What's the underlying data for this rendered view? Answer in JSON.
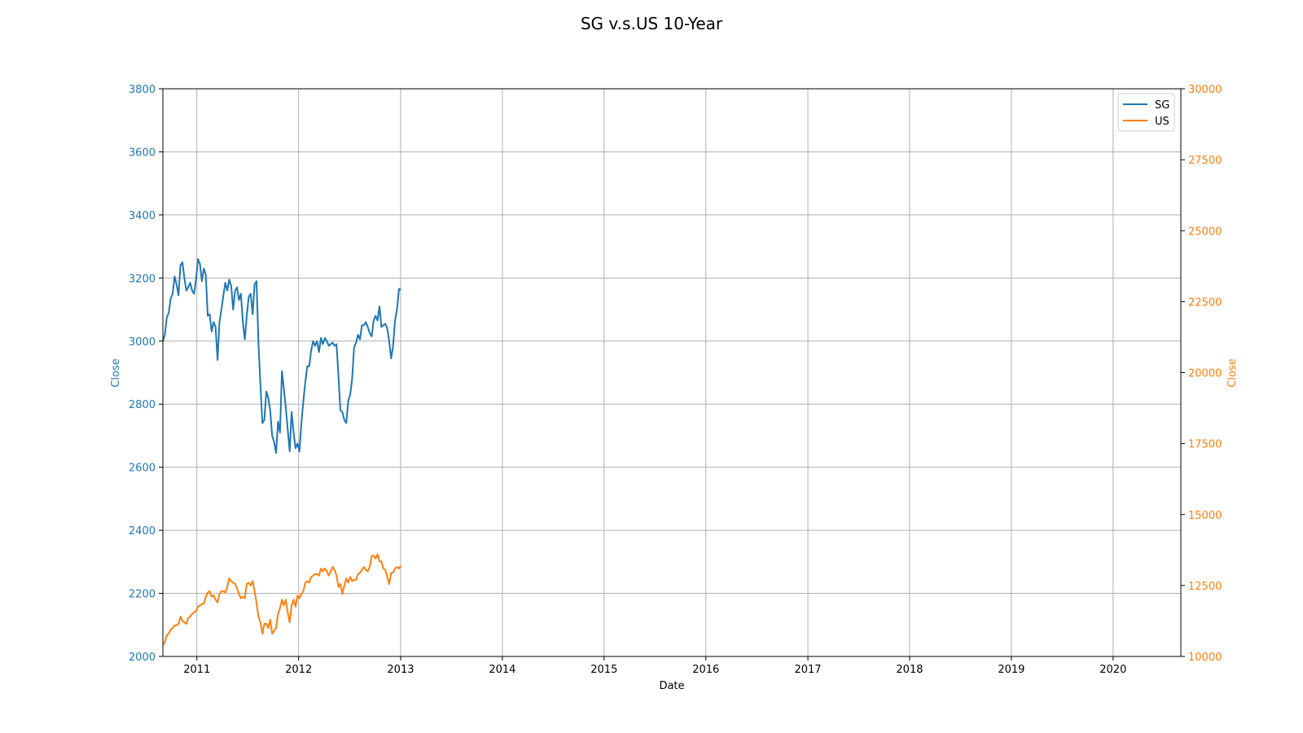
{
  "chart_data": {
    "type": "line",
    "title": "SG v.s.US 10-Year",
    "xlabel": "Date",
    "ylabel_left": "Close",
    "ylabel_right": "Close",
    "x_ticks": [
      "2011",
      "2012",
      "2013",
      "2014",
      "2015",
      "2016",
      "2017",
      "2018",
      "2019",
      "2020"
    ],
    "xlim": [
      "2010-09-01",
      "2020-08-31"
    ],
    "ylim_left": [
      2000,
      3800
    ],
    "ylim_right": [
      10000,
      30000
    ],
    "y_ticks_left": [
      2000,
      2200,
      2400,
      2600,
      2800,
      3000,
      3200,
      3400,
      3600,
      3800
    ],
    "y_ticks_right": [
      10000,
      12500,
      15000,
      17500,
      20000,
      22500,
      25000,
      27500,
      30000
    ],
    "grid": true,
    "legend_position": "top-right",
    "colors": {
      "SG": "#1f77b4",
      "US": "#ff7f0e"
    },
    "series": [
      {
        "name": "SG",
        "axis": "left",
        "color": "#1f77b4",
        "points": [
          [
            "2010-09-01",
            3000
          ],
          [
            "2010-09-08",
            3020
          ],
          [
            "2010-09-15",
            3075
          ],
          [
            "2010-09-22",
            3090
          ],
          [
            "2010-09-29",
            3135
          ],
          [
            "2010-10-06",
            3150
          ],
          [
            "2010-10-13",
            3205
          ],
          [
            "2010-10-20",
            3180
          ],
          [
            "2010-10-27",
            3145
          ],
          [
            "2010-11-03",
            3240
          ],
          [
            "2010-11-10",
            3250
          ],
          [
            "2010-11-17",
            3200
          ],
          [
            "2010-11-24",
            3160
          ],
          [
            "2010-12-01",
            3170
          ],
          [
            "2010-12-08",
            3185
          ],
          [
            "2010-12-15",
            3160
          ],
          [
            "2010-12-22",
            3150
          ],
          [
            "2010-12-29",
            3195
          ],
          [
            "2011-01-05",
            3260
          ],
          [
            "2011-01-12",
            3245
          ],
          [
            "2011-01-19",
            3190
          ],
          [
            "2011-01-26",
            3230
          ],
          [
            "2011-02-02",
            3210
          ],
          [
            "2011-02-09",
            3080
          ],
          [
            "2011-02-16",
            3085
          ],
          [
            "2011-02-23",
            3030
          ],
          [
            "2011-03-02",
            3060
          ],
          [
            "2011-03-09",
            3045
          ],
          [
            "2011-03-16",
            2940
          ],
          [
            "2011-03-23",
            3060
          ],
          [
            "2011-03-30",
            3100
          ],
          [
            "2011-04-06",
            3145
          ],
          [
            "2011-04-13",
            3185
          ],
          [
            "2011-04-20",
            3160
          ],
          [
            "2011-04-27",
            3195
          ],
          [
            "2011-05-04",
            3175
          ],
          [
            "2011-05-11",
            3100
          ],
          [
            "2011-05-18",
            3160
          ],
          [
            "2011-05-25",
            3170
          ],
          [
            "2011-06-01",
            3130
          ],
          [
            "2011-06-08",
            3150
          ],
          [
            "2011-06-15",
            3060
          ],
          [
            "2011-06-22",
            3005
          ],
          [
            "2011-06-29",
            3080
          ],
          [
            "2011-07-06",
            3140
          ],
          [
            "2011-07-13",
            3150
          ],
          [
            "2011-07-20",
            3085
          ],
          [
            "2011-07-27",
            3180
          ],
          [
            "2011-08-03",
            3190
          ],
          [
            "2011-08-10",
            2990
          ],
          [
            "2011-08-17",
            2860
          ],
          [
            "2011-08-24",
            2740
          ],
          [
            "2011-08-31",
            2750
          ],
          [
            "2011-09-07",
            2840
          ],
          [
            "2011-09-14",
            2820
          ],
          [
            "2011-09-21",
            2780
          ],
          [
            "2011-09-28",
            2700
          ],
          [
            "2011-10-05",
            2680
          ],
          [
            "2011-10-12",
            2645
          ],
          [
            "2011-10-19",
            2745
          ],
          [
            "2011-10-26",
            2710
          ],
          [
            "2011-11-02",
            2905
          ],
          [
            "2011-11-09",
            2850
          ],
          [
            "2011-11-16",
            2790
          ],
          [
            "2011-11-23",
            2720
          ],
          [
            "2011-11-30",
            2650
          ],
          [
            "2011-12-07",
            2775
          ],
          [
            "2011-12-14",
            2710
          ],
          [
            "2011-12-21",
            2660
          ],
          [
            "2011-12-28",
            2675
          ],
          [
            "2012-01-04",
            2650
          ],
          [
            "2012-01-11",
            2740
          ],
          [
            "2012-01-18",
            2810
          ],
          [
            "2012-01-25",
            2870
          ],
          [
            "2012-02-01",
            2920
          ],
          [
            "2012-02-08",
            2920
          ],
          [
            "2012-02-15",
            2970
          ],
          [
            "2012-02-22",
            3000
          ],
          [
            "2012-02-29",
            2985
          ],
          [
            "2012-03-07",
            3000
          ],
          [
            "2012-03-14",
            2965
          ],
          [
            "2012-03-21",
            3010
          ],
          [
            "2012-03-28",
            2990
          ],
          [
            "2012-04-04",
            3010
          ],
          [
            "2012-04-11",
            3000
          ],
          [
            "2012-04-18",
            2985
          ],
          [
            "2012-04-25",
            2990
          ],
          [
            "2012-05-02",
            2995
          ],
          [
            "2012-05-09",
            2985
          ],
          [
            "2012-05-16",
            2990
          ],
          [
            "2012-05-23",
            2890
          ],
          [
            "2012-05-30",
            2780
          ],
          [
            "2012-06-06",
            2775
          ],
          [
            "2012-06-13",
            2750
          ],
          [
            "2012-06-20",
            2740
          ],
          [
            "2012-06-27",
            2810
          ],
          [
            "2012-07-04",
            2830
          ],
          [
            "2012-07-11",
            2880
          ],
          [
            "2012-07-18",
            2980
          ],
          [
            "2012-07-25",
            2995
          ],
          [
            "2012-08-01",
            3020
          ],
          [
            "2012-08-08",
            3005
          ],
          [
            "2012-08-15",
            3050
          ],
          [
            "2012-08-22",
            3050
          ],
          [
            "2012-08-29",
            3060
          ],
          [
            "2012-09-05",
            3045
          ],
          [
            "2012-09-12",
            3025
          ],
          [
            "2012-09-19",
            3015
          ],
          [
            "2012-09-26",
            3065
          ],
          [
            "2012-10-03",
            3080
          ],
          [
            "2012-10-10",
            3065
          ],
          [
            "2012-10-17",
            3110
          ],
          [
            "2012-10-24",
            3045
          ],
          [
            "2012-10-31",
            3050
          ],
          [
            "2012-11-07",
            3055
          ],
          [
            "2012-11-14",
            3040
          ],
          [
            "2012-11-21",
            3000
          ],
          [
            "2012-11-28",
            2945
          ],
          [
            "2012-12-05",
            2985
          ],
          [
            "2012-12-12",
            3065
          ],
          [
            "2012-12-19",
            3100
          ],
          [
            "2012-12-26",
            3165
          ],
          [
            "2013-01-02",
            3163
          ]
        ]
      },
      {
        "name": "US",
        "axis": "right",
        "color": "#ff7f0e",
        "points": [
          [
            "2010-09-01",
            10400
          ],
          [
            "2010-09-08",
            10500
          ],
          [
            "2010-09-15",
            10750
          ],
          [
            "2010-09-22",
            10800
          ],
          [
            "2010-09-29",
            10950
          ],
          [
            "2010-10-06",
            11000
          ],
          [
            "2010-10-13",
            11100
          ],
          [
            "2010-10-20",
            11100
          ],
          [
            "2010-10-27",
            11150
          ],
          [
            "2010-11-03",
            11400
          ],
          [
            "2010-11-10",
            11250
          ],
          [
            "2010-11-17",
            11200
          ],
          [
            "2010-11-24",
            11150
          ],
          [
            "2010-12-01",
            11350
          ],
          [
            "2010-12-08",
            11400
          ],
          [
            "2010-12-15",
            11500
          ],
          [
            "2010-12-22",
            11550
          ],
          [
            "2010-12-29",
            11600
          ],
          [
            "2011-01-05",
            11750
          ],
          [
            "2011-01-12",
            11800
          ],
          [
            "2011-01-19",
            11850
          ],
          [
            "2011-01-26",
            11850
          ],
          [
            "2011-02-02",
            12100
          ],
          [
            "2011-02-09",
            12250
          ],
          [
            "2011-02-16",
            12300
          ],
          [
            "2011-02-23",
            12100
          ],
          [
            "2011-03-02",
            12150
          ],
          [
            "2011-03-09",
            12000
          ],
          [
            "2011-03-16",
            11900
          ],
          [
            "2011-03-23",
            12200
          ],
          [
            "2011-03-30",
            12300
          ],
          [
            "2011-04-06",
            12300
          ],
          [
            "2011-04-13",
            12250
          ],
          [
            "2011-04-20",
            12450
          ],
          [
            "2011-04-27",
            12750
          ],
          [
            "2011-05-04",
            12650
          ],
          [
            "2011-05-11",
            12600
          ],
          [
            "2011-05-18",
            12550
          ],
          [
            "2011-05-25",
            12400
          ],
          [
            "2011-06-01",
            12200
          ],
          [
            "2011-06-08",
            12050
          ],
          [
            "2011-06-15",
            12100
          ],
          [
            "2011-06-22",
            12050
          ],
          [
            "2011-06-29",
            12550
          ],
          [
            "2011-07-06",
            12600
          ],
          [
            "2011-07-13",
            12500
          ],
          [
            "2011-07-20",
            12650
          ],
          [
            "2011-07-27",
            12300
          ],
          [
            "2011-08-03",
            11900
          ],
          [
            "2011-08-10",
            11400
          ],
          [
            "2011-08-17",
            11200
          ],
          [
            "2011-08-24",
            10800
          ],
          [
            "2011-08-31",
            11150
          ],
          [
            "2011-09-07",
            11150
          ],
          [
            "2011-09-14",
            11000
          ],
          [
            "2011-09-21",
            11300
          ],
          [
            "2011-09-28",
            10800
          ],
          [
            "2011-10-05",
            10900
          ],
          [
            "2011-10-12",
            11000
          ],
          [
            "2011-10-19",
            11500
          ],
          [
            "2011-10-26",
            11700
          ],
          [
            "2011-11-02",
            12000
          ],
          [
            "2011-11-09",
            11800
          ],
          [
            "2011-11-16",
            12000
          ],
          [
            "2011-11-23",
            11550
          ],
          [
            "2011-11-30",
            11200
          ],
          [
            "2011-12-07",
            11800
          ],
          [
            "2011-12-14",
            12000
          ],
          [
            "2011-12-21",
            11750
          ],
          [
            "2011-12-28",
            12150
          ],
          [
            "2012-01-04",
            12050
          ],
          [
            "2012-01-11",
            12200
          ],
          [
            "2012-01-18",
            12300
          ],
          [
            "2012-01-25",
            12600
          ],
          [
            "2012-02-01",
            12650
          ],
          [
            "2012-02-08",
            12600
          ],
          [
            "2012-02-15",
            12800
          ],
          [
            "2012-02-22",
            12850
          ],
          [
            "2012-02-29",
            12900
          ],
          [
            "2012-03-07",
            12900
          ],
          [
            "2012-03-14",
            12850
          ],
          [
            "2012-03-21",
            13100
          ],
          [
            "2012-03-28",
            13000
          ],
          [
            "2012-04-04",
            13100
          ],
          [
            "2012-04-11",
            13000
          ],
          [
            "2012-04-18",
            12850
          ],
          [
            "2012-04-25",
            13000
          ],
          [
            "2012-05-02",
            13150
          ],
          [
            "2012-05-09",
            13050
          ],
          [
            "2012-05-16",
            12850
          ],
          [
            "2012-05-23",
            12450
          ],
          [
            "2012-05-30",
            12550
          ],
          [
            "2012-06-06",
            12200
          ],
          [
            "2012-06-13",
            12500
          ],
          [
            "2012-06-20",
            12750
          ],
          [
            "2012-06-27",
            12600
          ],
          [
            "2012-07-04",
            12800
          ],
          [
            "2012-07-11",
            12650
          ],
          [
            "2012-07-18",
            12700
          ],
          [
            "2012-07-25",
            12700
          ],
          [
            "2012-08-01",
            12900
          ],
          [
            "2012-08-08",
            12950
          ],
          [
            "2012-08-15",
            13050
          ],
          [
            "2012-08-22",
            13150
          ],
          [
            "2012-08-29",
            13050
          ],
          [
            "2012-09-05",
            13000
          ],
          [
            "2012-09-12",
            13150
          ],
          [
            "2012-09-19",
            13550
          ],
          [
            "2012-09-26",
            13550
          ],
          [
            "2012-10-03",
            13450
          ],
          [
            "2012-10-10",
            13600
          ],
          [
            "2012-10-17",
            13350
          ],
          [
            "2012-10-24",
            13350
          ],
          [
            "2012-10-31",
            13100
          ],
          [
            "2012-11-07",
            13050
          ],
          [
            "2012-11-14",
            12800
          ],
          [
            "2012-11-21",
            12550
          ],
          [
            "2012-11-28",
            12950
          ],
          [
            "2012-12-05",
            12950
          ],
          [
            "2012-12-12",
            13100
          ],
          [
            "2012-12-19",
            13150
          ],
          [
            "2012-12-26",
            13100
          ],
          [
            "2013-01-02",
            13200
          ]
        ]
      }
    ]
  }
}
